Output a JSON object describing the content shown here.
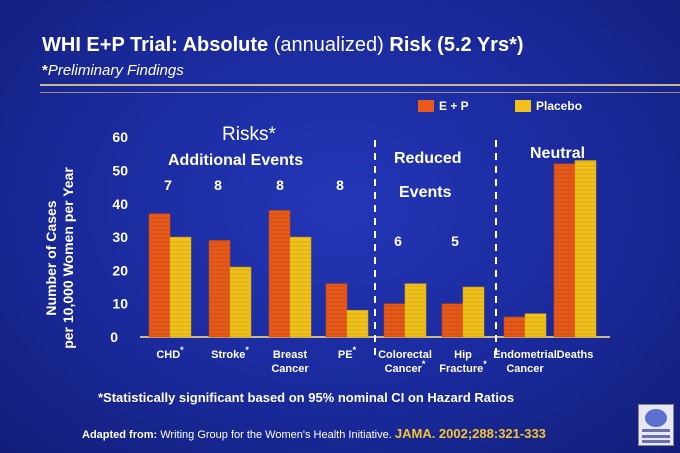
{
  "header": {
    "title_bold": "WHI E+P Trial:",
    "title_rest_bold": "Absolute",
    "title_rest_normal": "(annualized)",
    "title_end_bold": "Risk (5.2 Yrs*)",
    "subtitle_star": "*",
    "subtitle": "Preliminary Findings"
  },
  "colors": {
    "ep": "#e85a1a",
    "placebo": "#f2c21b",
    "background": "#1b2a9a",
    "accent": "#f4c430"
  },
  "legend": {
    "ep": "E + P",
    "placebo": "Placebo"
  },
  "y_axis_label_line1": "Number of Cases",
  "y_axis_label_line2": "per 10,000 Women per Year",
  "annotations": {
    "risks_title": "Risks*",
    "risks_sub": "Additional Events",
    "reduced_1": "Reduced",
    "reduced_2": "Events",
    "neutral": "Neutral",
    "diffs": [
      "7",
      "8",
      "8",
      "8",
      "6",
      "5"
    ]
  },
  "chart_data": {
    "type": "bar",
    "title": "",
    "ylabel": "Number of Cases per 10,000 Women per Year",
    "ylim": [
      0,
      60
    ],
    "yticks": [
      "0",
      "10",
      "20",
      "30",
      "40",
      "50",
      "60"
    ],
    "categories": [
      {
        "line1": "CHD",
        "star": "*",
        "line2": ""
      },
      {
        "line1": "Stroke",
        "star": "*",
        "line2": ""
      },
      {
        "line1": "Breast",
        "star": "",
        "line2": "Cancer"
      },
      {
        "line1": "PE",
        "star": "*",
        "line2": ""
      },
      {
        "line1": "Colorectal",
        "star": "*",
        "line2": "Cancer"
      },
      {
        "line1": "Hip",
        "star": "*",
        "line2": "Fracture"
      },
      {
        "line1": "Endometrial",
        "star": "",
        "line2": "Cancer"
      },
      {
        "line1": "Deaths",
        "star": "",
        "line2": ""
      }
    ],
    "series": [
      {
        "name": "E + P",
        "values": [
          37,
          29,
          38,
          16,
          10,
          10,
          6,
          52
        ]
      },
      {
        "name": "Placebo",
        "values": [
          30,
          21,
          30,
          8,
          16,
          15,
          7,
          53
        ]
      }
    ],
    "legend_position": "top-right",
    "grid": false
  },
  "footnote": "*Statistically significant based on 95% nominal CI on Hazard Ratios",
  "source_prefix": "Adapted from:",
  "source_text": "Writing Group for the Women's Health Initiative.",
  "source_journal": "JAMA. 2002;288:321-333"
}
